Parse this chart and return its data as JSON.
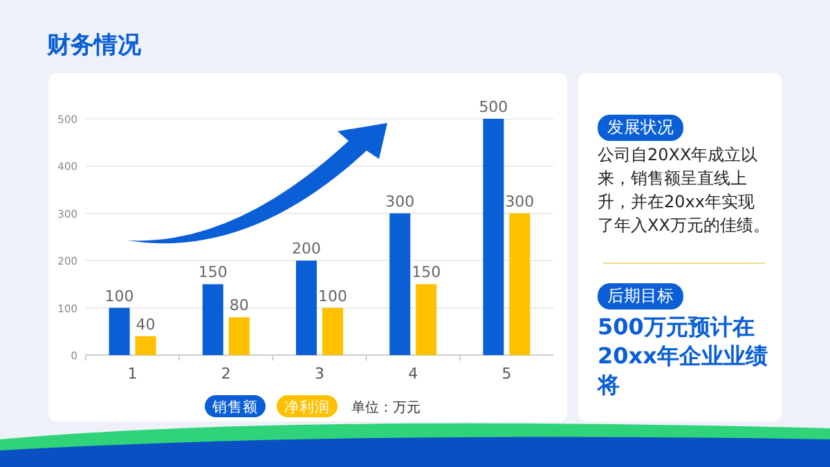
{
  "chart_data": [
    {
      "type": "bar",
      "title": "财务情况",
      "categories": [
        "1",
        "2",
        "3",
        "4",
        "5"
      ],
      "series": [
        {
          "name": "销售额",
          "color": "#0a5fd6",
          "values": [
            100,
            150,
            200,
            300,
            500
          ]
        },
        {
          "name": "净利润",
          "color": "#ffc000",
          "values": [
            40,
            80,
            100,
            150,
            300
          ]
        }
      ],
      "ylim": [
        0,
        500
      ],
      "yticks": [
        0,
        100,
        200,
        300,
        400,
        500
      ],
      "grid": "y",
      "legend": "bottom",
      "data_labels": true,
      "annotations": [
        "单位：万元"
      ]
    },
    {
      "type": "other",
      "title": "发展状况",
      "annotations": [
        "公司自20XX年成立以来，销售额呈直线上升，并在20xx年实现了年入XX万元的佳绩。",
        "后期目标",
        "500万元预计在20xx年企业业绩将"
      ]
    }
  ]
}
